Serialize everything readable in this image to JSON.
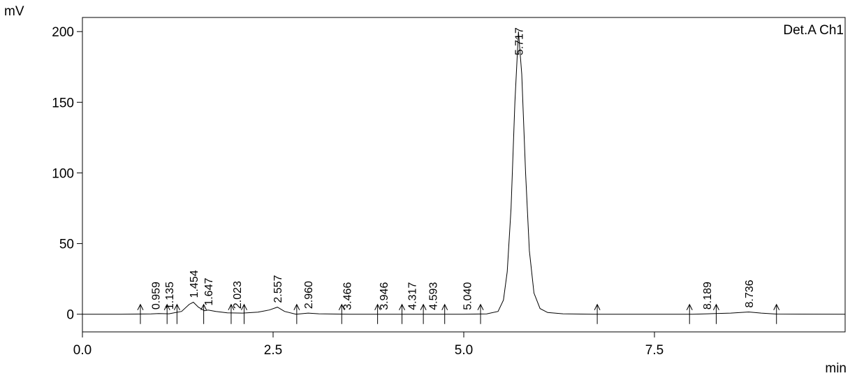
{
  "chart_data": {
    "type": "line",
    "y_label": "mV",
    "x_label": "min",
    "legend": "Det.A Ch1",
    "xlim": [
      0,
      10
    ],
    "ylim": [
      -12.5,
      210
    ],
    "xticks": [
      {
        "value": 0,
        "label": "0.0"
      },
      2.5,
      {
        "value": 5,
        "label": "5.0"
      },
      7.5
    ],
    "yticks": [
      0,
      50,
      100,
      150,
      200
    ],
    "series": [
      {
        "color": "#000000",
        "x": [
          0,
          0.5,
          0.9,
          1.0,
          1.135,
          1.3,
          1.4,
          1.454,
          1.52,
          1.6,
          1.647,
          1.75,
          1.9,
          2.1,
          2.3,
          2.45,
          2.557,
          2.65,
          2.8,
          2.96,
          3.1,
          3.5,
          4,
          4.5,
          5.0,
          5.3,
          5.45,
          5.52,
          5.57,
          5.62,
          5.67,
          5.717,
          5.76,
          5.81,
          5.86,
          5.92,
          6.0,
          6.1,
          6.3,
          6.7,
          7.5,
          8.0,
          8.2,
          8.5,
          8.736,
          8.9,
          9.1,
          10
        ],
        "values": [
          0,
          0,
          0.2,
          0.5,
          0.3,
          2,
          7,
          8.5,
          5,
          2.5,
          3,
          2,
          1,
          0.8,
          1.5,
          3,
          5,
          2,
          0,
          0.8,
          0.3,
          0,
          0,
          0,
          0,
          0.2,
          2,
          10,
          30,
          75,
          150,
          200,
          170,
          100,
          45,
          15,
          4,
          1.2,
          0.3,
          0,
          0,
          0,
          0.3,
          0.8,
          1.6,
          0.8,
          0.1,
          0
        ]
      }
    ],
    "peaks": [
      {
        "x": 0.959,
        "y": 0.3,
        "label": "0.959"
      },
      {
        "x": 1.135,
        "y": 0.3,
        "label": "1.135"
      },
      {
        "x": 1.454,
        "y": 8.5,
        "label": "1.454"
      },
      {
        "x": 1.647,
        "y": 3,
        "label": "1.647"
      },
      {
        "x": 2.023,
        "y": 0.8,
        "label": "2.023"
      },
      {
        "x": 2.557,
        "y": 5,
        "label": "2.557"
      },
      {
        "x": 2.96,
        "y": 0.8,
        "label": "2.960"
      },
      {
        "x": 3.466,
        "y": 0,
        "label": "3.466"
      },
      {
        "x": 3.946,
        "y": 0,
        "label": "3.946"
      },
      {
        "x": 4.317,
        "y": 0,
        "label": "4.317"
      },
      {
        "x": 4.593,
        "y": 0,
        "label": "4.593"
      },
      {
        "x": 5.04,
        "y": 0,
        "label": "5.040"
      },
      {
        "x": 5.717,
        "y": 200,
        "label": "5.717"
      },
      {
        "x": 8.189,
        "y": 0.3,
        "label": "8.189"
      },
      {
        "x": 8.736,
        "y": 1.6,
        "label": "8.736"
      }
    ],
    "integration_marks": [
      0.76,
      1.11,
      1.24,
      1.59,
      1.95,
      2.12,
      2.81,
      3.4,
      3.87,
      4.19,
      4.47,
      4.75,
      5.22,
      6.75,
      7.96,
      8.31,
      9.1
    ]
  }
}
